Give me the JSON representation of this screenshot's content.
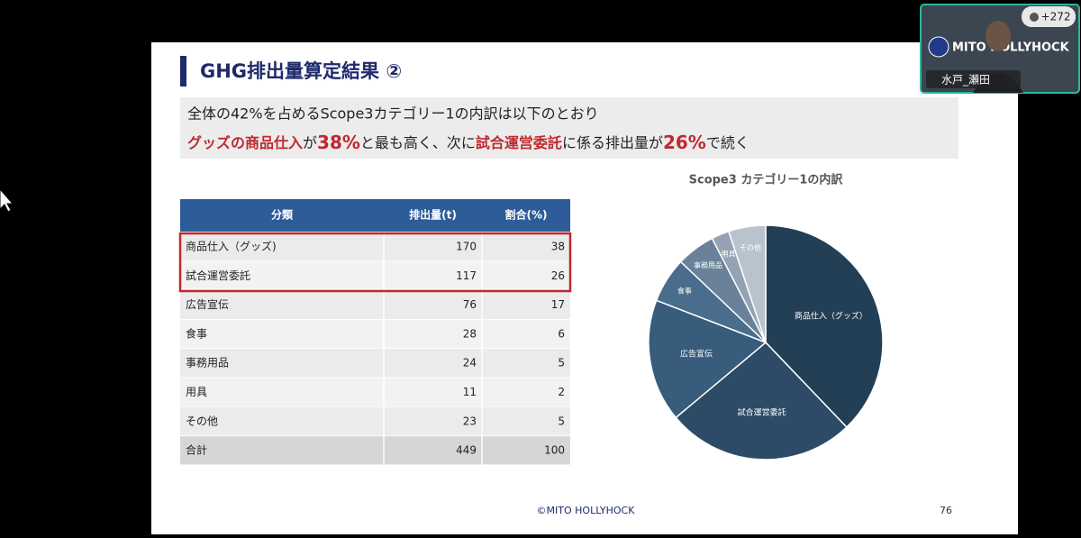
{
  "slide": {
    "title": "GHG排出量算定結果 ②",
    "line1": "全体の42%を占めるScope3カテゴリー1の内訳は以下のとおり",
    "line2": [
      {
        "text": "グッズの商品仕入",
        "style": "red"
      },
      {
        "text": "が",
        "style": "plain"
      },
      {
        "text": "38%",
        "style": "big"
      },
      {
        "text": "と最も高く、次に",
        "style": "plain"
      },
      {
        "text": "試合運営委託",
        "style": "red"
      },
      {
        "text": "に係る排出量が",
        "style": "plain"
      },
      {
        "text": "26%",
        "style": "big"
      },
      {
        "text": "で続く",
        "style": "plain"
      }
    ],
    "footer": "©MITO HOLLYHOCK",
    "page": 76
  },
  "table": {
    "header": [
      "分類",
      "排出量(t)",
      "割合(%)"
    ],
    "rows": [
      [
        "商品仕入（グッズ)",
        170,
        38
      ],
      [
        "試合運営委託",
        117,
        26
      ],
      [
        "広告宣伝",
        76,
        17
      ],
      [
        "食事",
        28,
        6
      ],
      [
        "事務用品",
        24,
        5
      ],
      [
        "用具",
        11,
        2
      ],
      [
        "その他",
        23,
        5
      ],
      [
        "合計",
        449,
        100
      ]
    ]
  },
  "chart_data": {
    "type": "pie",
    "title": "Scope3 カテゴリー1の内訳",
    "categories": [
      "商品仕入（グッズ）",
      "試合運営委託",
      "広告宣伝",
      "食事",
      "事務用品",
      "用具",
      "その他"
    ],
    "values": [
      170,
      117,
      76,
      28,
      24,
      11,
      23
    ],
    "colors": [
      "#233f55",
      "#2d4b66",
      "#375c7c",
      "#4a6d8d",
      "#6a8299",
      "#93a3b3",
      "#b9c3cd"
    ]
  },
  "video": {
    "participants": "+272",
    "logo": "MITO HOLLYHOCK",
    "name": "水戸_瀬田"
  }
}
